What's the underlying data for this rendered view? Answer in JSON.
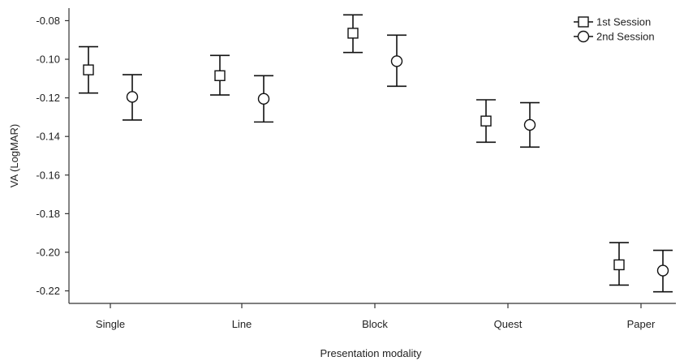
{
  "chart_data": {
    "type": "scatter",
    "title": "",
    "xlabel": "Presentation modality",
    "ylabel": "VA (LogMAR)",
    "categories": [
      "Single",
      "Line",
      "Block",
      "Quest",
      "Paper"
    ],
    "yticks": [
      "-0.08",
      "-0.10",
      "-0.12",
      "-0.14",
      "-0.16",
      "-0.18",
      "-0.20",
      "-0.22"
    ],
    "ytick_values": [
      -0.08,
      -0.1,
      -0.12,
      -0.14,
      -0.16,
      -0.18,
      -0.2,
      -0.22
    ],
    "ylim": [
      -0.2265,
      -0.0735
    ],
    "legend_position": "top-right",
    "series": [
      {
        "name": "1st Session",
        "marker": "square",
        "values": [
          -0.1055,
          -0.1085,
          -0.0865,
          -0.132,
          -0.2065
        ],
        "err_high": [
          -0.0935,
          -0.098,
          -0.077,
          -0.121,
          -0.195
        ],
        "err_low": [
          -0.1175,
          -0.1185,
          -0.0965,
          -0.143,
          -0.217
        ]
      },
      {
        "name": "2nd Session",
        "marker": "circle",
        "values": [
          -0.1195,
          -0.1205,
          -0.101,
          -0.134,
          -0.2095
        ],
        "err_high": [
          -0.108,
          -0.1085,
          -0.0875,
          -0.1225,
          -0.199
        ],
        "err_low": [
          -0.1315,
          -0.1325,
          -0.114,
          -0.1455,
          -0.2205
        ]
      }
    ]
  }
}
